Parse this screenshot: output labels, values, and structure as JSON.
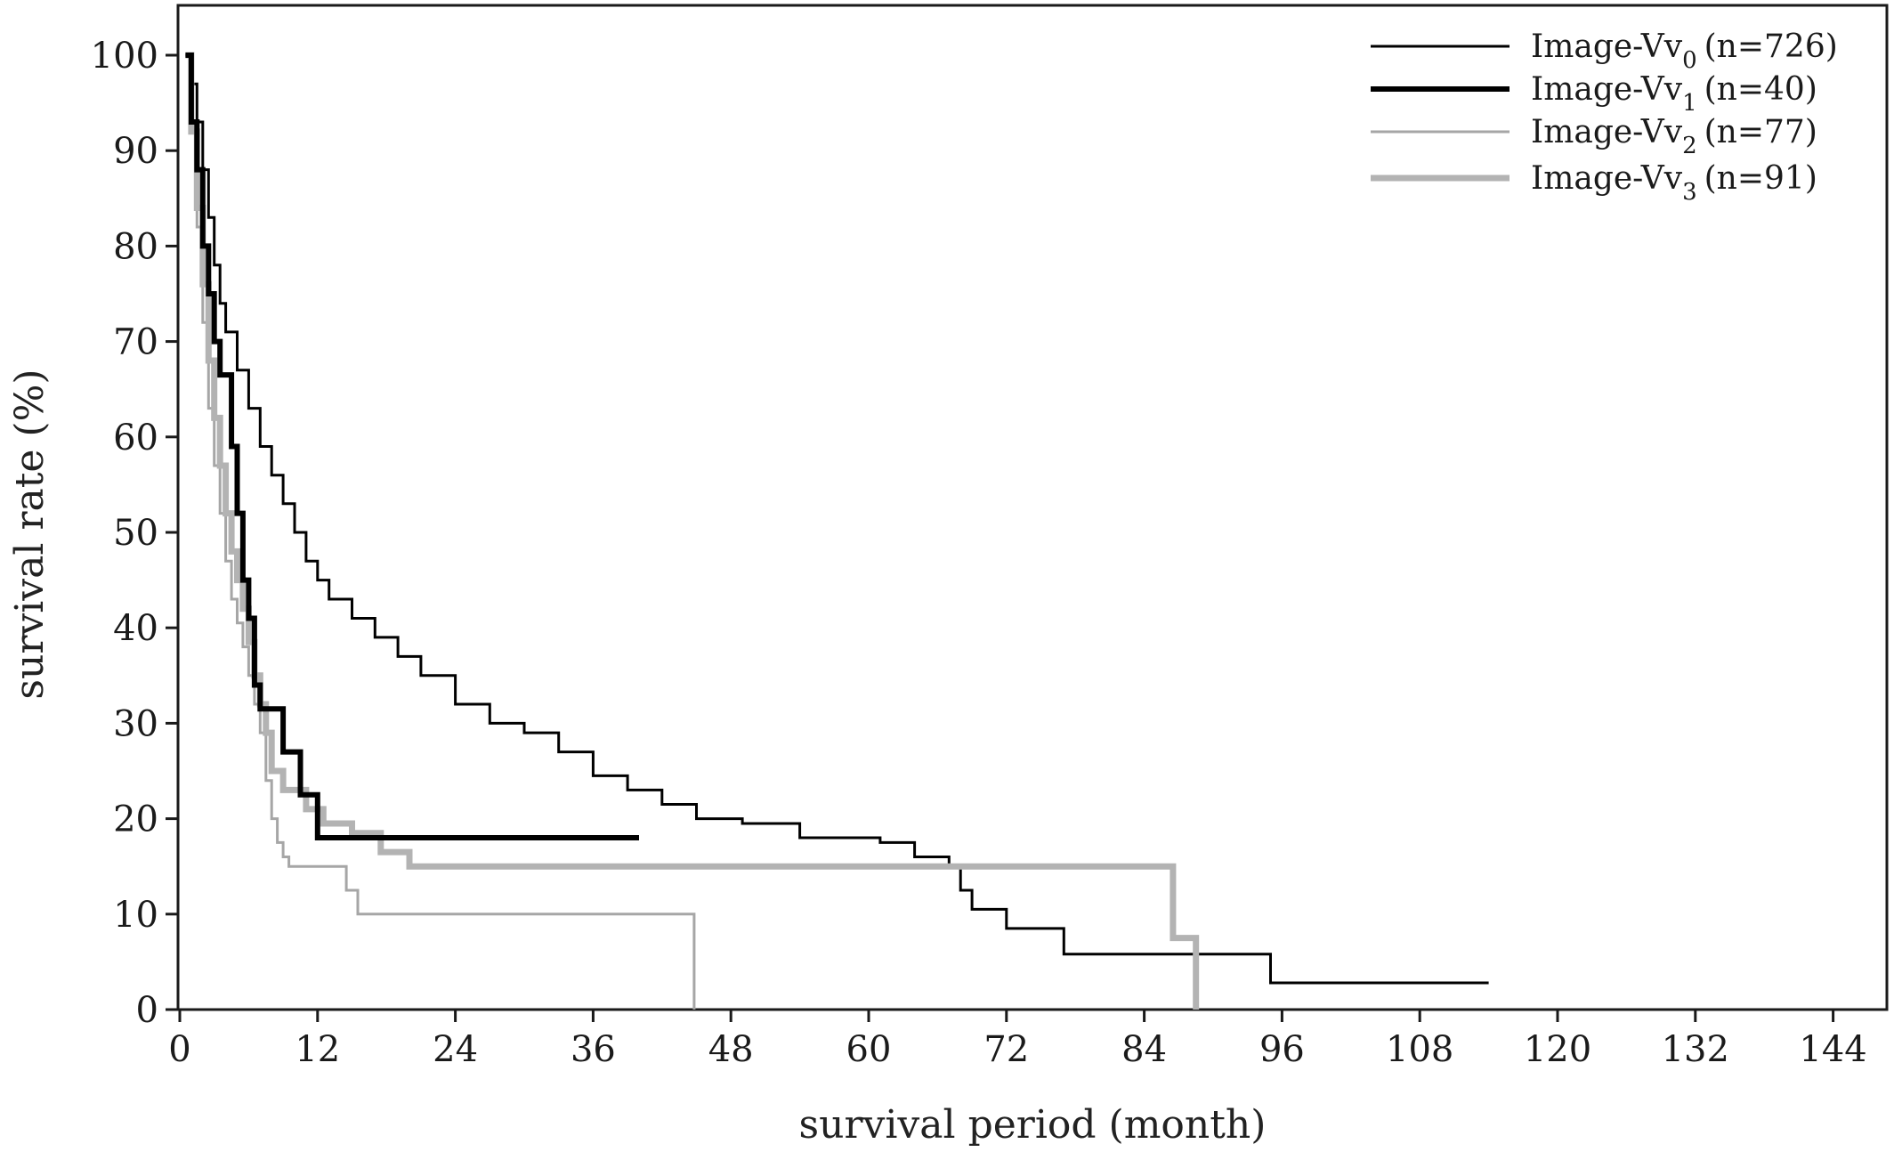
{
  "chart_data": {
    "type": "line",
    "step": true,
    "xlabel": "survival period (month)",
    "ylabel": "survival rate (%)",
    "xlim": [
      0,
      150
    ],
    "ylim": [
      0,
      105
    ],
    "xticks": [
      0,
      12,
      24,
      36,
      48,
      60,
      72,
      84,
      96,
      108,
      120,
      132,
      144
    ],
    "yticks": [
      0,
      10,
      20,
      30,
      40,
      50,
      60,
      70,
      80,
      90,
      100
    ],
    "grid": false,
    "legend_position": "top-right",
    "series": [
      {
        "name": "Image-Vv",
        "subscript": "0",
        "count_label": "(n=726)",
        "color": "#000000",
        "points": [
          [
            0.5,
            100
          ],
          [
            1.0,
            97
          ],
          [
            1.5,
            93
          ],
          [
            2.0,
            88
          ],
          [
            2.5,
            83
          ],
          [
            3.0,
            78
          ],
          [
            3.5,
            74
          ],
          [
            4.0,
            71
          ],
          [
            5.0,
            67
          ],
          [
            6.0,
            63
          ],
          [
            7.0,
            59
          ],
          [
            8.0,
            56
          ],
          [
            9.0,
            53
          ],
          [
            10.0,
            50
          ],
          [
            11.0,
            47
          ],
          [
            12.0,
            45
          ],
          [
            13.0,
            43
          ],
          [
            15.0,
            41
          ],
          [
            17.0,
            39
          ],
          [
            19.0,
            37
          ],
          [
            21.0,
            35
          ],
          [
            24.0,
            32
          ],
          [
            27.0,
            30
          ],
          [
            30.0,
            29
          ],
          [
            33.0,
            27
          ],
          [
            36.0,
            24.5
          ],
          [
            39.0,
            23
          ],
          [
            42.0,
            21.5
          ],
          [
            45.0,
            20
          ],
          [
            49.0,
            19.5
          ],
          [
            54.0,
            18
          ],
          [
            61.0,
            17.5
          ],
          [
            64.0,
            16
          ],
          [
            67.0,
            15
          ],
          [
            68.0,
            12.5
          ],
          [
            69.0,
            10.5
          ],
          [
            72.0,
            8.5
          ],
          [
            77.0,
            5.8
          ],
          [
            95.0,
            2.8
          ],
          [
            114.0,
            2.8
          ]
        ]
      },
      {
        "name": "Image-Vv",
        "subscript": "1",
        "count_label": "(n=40)",
        "color": "#000000",
        "points": [
          [
            0.5,
            100
          ],
          [
            1.0,
            93
          ],
          [
            1.5,
            88
          ],
          [
            2.0,
            80
          ],
          [
            2.5,
            75
          ],
          [
            3.0,
            70
          ],
          [
            3.5,
            66.5
          ],
          [
            4.5,
            59
          ],
          [
            5.0,
            52
          ],
          [
            5.5,
            45
          ],
          [
            6.0,
            41
          ],
          [
            6.5,
            34
          ],
          [
            7.0,
            31.5
          ],
          [
            8.0,
            31.5
          ],
          [
            9.0,
            27
          ],
          [
            10.0,
            27
          ],
          [
            10.5,
            22.5
          ],
          [
            12.0,
            18
          ],
          [
            40.0,
            18
          ]
        ]
      },
      {
        "name": "Image-Vv",
        "subscript": "2",
        "count_label": "(n=77)",
        "color": "#a6a6a6",
        "points": [
          [
            0.5,
            100
          ],
          [
            1.0,
            92
          ],
          [
            1.5,
            82
          ],
          [
            2.0,
            72
          ],
          [
            2.5,
            63
          ],
          [
            3.0,
            57
          ],
          [
            3.5,
            52
          ],
          [
            4.0,
            47
          ],
          [
            4.5,
            43
          ],
          [
            5.0,
            40.5
          ],
          [
            5.5,
            38
          ],
          [
            6.0,
            35
          ],
          [
            6.5,
            32
          ],
          [
            7.0,
            29
          ],
          [
            7.5,
            24
          ],
          [
            8.0,
            20
          ],
          [
            8.5,
            17.5
          ],
          [
            9.0,
            16
          ],
          [
            9.5,
            15
          ],
          [
            14.5,
            12.5
          ],
          [
            15.5,
            10
          ],
          [
            44.8,
            10
          ],
          [
            44.8,
            0
          ]
        ]
      },
      {
        "name": "Image-Vv",
        "subscript": "3",
        "count_label": "(n=91)",
        "color": "#b3b3b3",
        "points": [
          [
            0.5,
            100
          ],
          [
            1.0,
            92
          ],
          [
            1.5,
            84
          ],
          [
            2.0,
            76
          ],
          [
            2.5,
            68
          ],
          [
            3.0,
            62
          ],
          [
            3.5,
            57
          ],
          [
            4.0,
            52
          ],
          [
            4.5,
            48
          ],
          [
            5.0,
            45
          ],
          [
            5.5,
            42
          ],
          [
            6.0,
            38.5
          ],
          [
            6.5,
            35
          ],
          [
            7.0,
            32
          ],
          [
            7.5,
            29
          ],
          [
            8.0,
            25
          ],
          [
            9.0,
            23
          ],
          [
            11.0,
            21
          ],
          [
            12.5,
            19.5
          ],
          [
            15.0,
            18.5
          ],
          [
            17.5,
            16.5
          ],
          [
            20.0,
            15
          ],
          [
            86.5,
            15
          ],
          [
            86.5,
            7.5
          ],
          [
            88.5,
            7.5
          ],
          [
            88.5,
            0
          ]
        ]
      }
    ]
  }
}
